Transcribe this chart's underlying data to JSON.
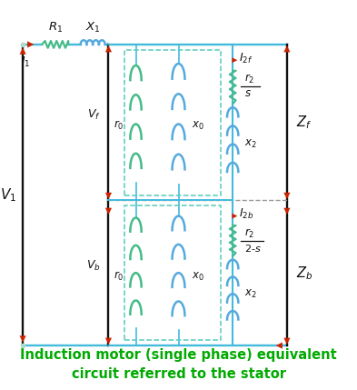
{
  "title_line1": "Induction motor (single phase) equivalent",
  "title_line2": "circuit referred to the stator",
  "title_color": "#00aa00",
  "title_fontsize": 10.5,
  "bg_color": "#ffffff",
  "wire_color": "#44bbdd",
  "arrow_color": "#cc2200",
  "black_wire": "#111111",
  "teal_box": "#55ccbb",
  "resistor_color": "#44bb88",
  "inductor_color": "#55aadd",
  "figsize": [
    3.93,
    4.29
  ],
  "dpi": 100
}
